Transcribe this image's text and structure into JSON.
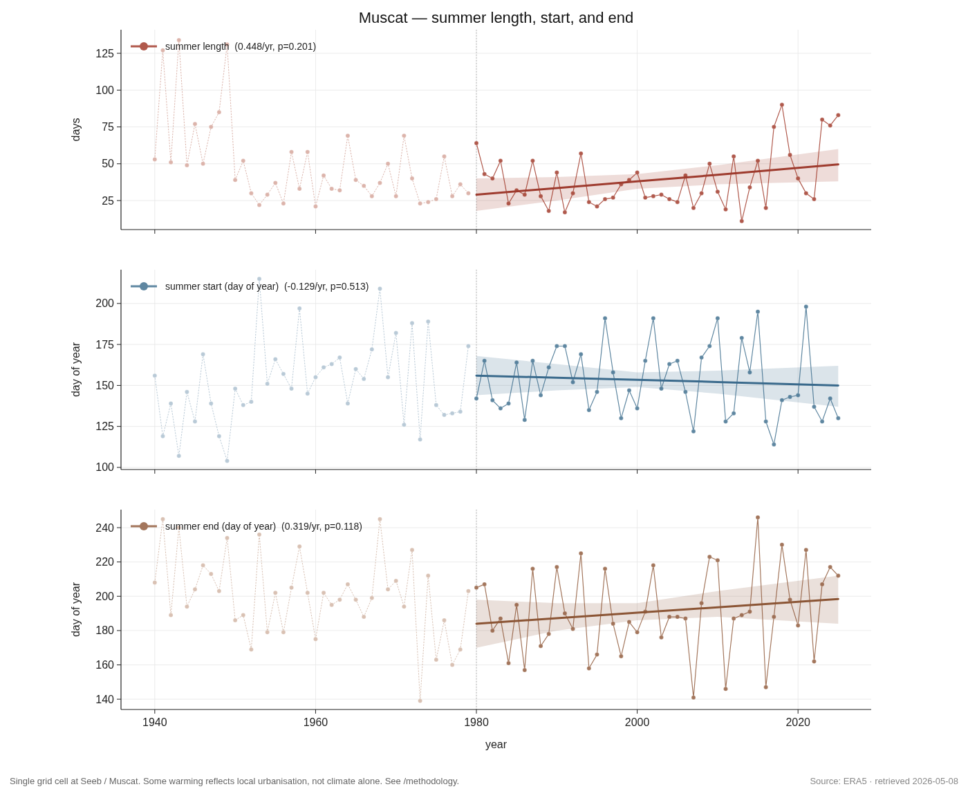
{
  "chart_data": [
    {
      "type": "line",
      "title": "Muscat — summer length, start, and end",
      "ylabel": "days",
      "xlim": [
        1935.8,
        2029.1
      ],
      "xticks": [
        1940,
        1960,
        1980,
        2000,
        2020
      ],
      "ylim": [
        5.3,
        141
      ],
      "yticks": [
        25,
        50,
        75,
        100,
        125
      ],
      "grid": true,
      "legend": "top left",
      "tick_labels": "y",
      "marker": "circle",
      "ref_lines": [
        {
          "axis": "x",
          "value": 1980,
          "color": "#999999",
          "line_style": "dotted"
        }
      ],
      "series": [
        {
          "x": [
            1940,
            1941,
            1942,
            1943,
            1944,
            1945,
            1946,
            1947,
            1948,
            1949,
            1950,
            1951,
            1952,
            1953,
            1954,
            1955,
            1956,
            1957,
            1958,
            1959,
            1960,
            1961,
            1962,
            1963,
            1964,
            1965,
            1966,
            1967,
            1968,
            1969,
            1970,
            1971,
            1972,
            1973,
            1974,
            1975,
            1976,
            1977,
            1978,
            1979
          ],
          "color": "#dcb4ab",
          "line_style": "dotted",
          "values": [
            53,
            127,
            51,
            134,
            49,
            77,
            50,
            75,
            85,
            131,
            39,
            52,
            30,
            22,
            29,
            37,
            23,
            58,
            33,
            58,
            21,
            42,
            33,
            32,
            69,
            39,
            35,
            28,
            37,
            50,
            28,
            69,
            40,
            23,
            24,
            26,
            55,
            28,
            36,
            30
          ]
        },
        {
          "name": "summer length  (0.448/yr, p=0.201)",
          "x": [
            1980,
            1981,
            1982,
            1983,
            1984,
            1985,
            1986,
            1987,
            1988,
            1989,
            1990,
            1991,
            1992,
            1993,
            1994,
            1995,
            1996,
            1997,
            1998,
            1999,
            2000,
            2001,
            2002,
            2003,
            2004,
            2005,
            2006,
            2007,
            2008,
            2009,
            2010,
            2011,
            2012,
            2013,
            2014,
            2015,
            2016,
            2017,
            2018,
            2019,
            2020,
            2021,
            2022,
            2023,
            2024,
            2025
          ],
          "color": "#b0594c",
          "line_style": "solid",
          "values": [
            64,
            43,
            40,
            52,
            23,
            32,
            29,
            52,
            28,
            18,
            44,
            17,
            30,
            57,
            24,
            21,
            26,
            27,
            36,
            39,
            44,
            27,
            28,
            29,
            26,
            24,
            42,
            20,
            30,
            50,
            31,
            19,
            55,
            11,
            34,
            52,
            20,
            75,
            90,
            56,
            40,
            30,
            26,
            80,
            76,
            83
          ]
        },
        {
          "x": [
            1980,
            1990,
            2000,
            2010,
            2025
          ],
          "color": "#9e3b2e",
          "marker": "none",
          "line_style": "solid",
          "values": [
            29,
            33.5,
            38,
            42.5,
            49.5
          ],
          "lower": [
            18,
            25,
            33,
            36,
            38
          ],
          "upper": [
            40,
            41,
            43,
            49,
            60
          ]
        }
      ]
    },
    {
      "type": "line",
      "ylabel": "day of year",
      "xlim": [
        1935.8,
        2029.1
      ],
      "xticks": [
        1940,
        1960,
        1980,
        2000,
        2020
      ],
      "ylim": [
        98.7,
        220.6
      ],
      "yticks": [
        100,
        125,
        150,
        175,
        200
      ],
      "grid": true,
      "legend": "top left",
      "tick_labels": "y",
      "marker": "circle",
      "ref_lines": [
        {
          "axis": "x",
          "value": 1980,
          "color": "#999999",
          "line_style": "dotted"
        }
      ],
      "series": [
        {
          "x": [
            1940,
            1941,
            1942,
            1943,
            1944,
            1945,
            1946,
            1947,
            1948,
            1949,
            1950,
            1951,
            1952,
            1953,
            1954,
            1955,
            1956,
            1957,
            1958,
            1959,
            1960,
            1961,
            1962,
            1963,
            1964,
            1965,
            1966,
            1967,
            1968,
            1969,
            1970,
            1971,
            1972,
            1973,
            1974,
            1975,
            1976,
            1977,
            1978,
            1979
          ],
          "color": "#b9cad7",
          "line_style": "dotted",
          "values": [
            156,
            119,
            139,
            107,
            146,
            128,
            169,
            139,
            119,
            104,
            148,
            138,
            140,
            215,
            151,
            166,
            157,
            148,
            197,
            145,
            155,
            161,
            163,
            167,
            139,
            160,
            154,
            172,
            209,
            155,
            182,
            126,
            188,
            117,
            189,
            138,
            132,
            133,
            134,
            174
          ]
        },
        {
          "name": "summer start (day of year)  (-0.129/yr, p=0.513)",
          "x": [
            1980,
            1981,
            1982,
            1983,
            1984,
            1985,
            1986,
            1987,
            1988,
            1989,
            1990,
            1991,
            1992,
            1993,
            1994,
            1995,
            1996,
            1997,
            1998,
            1999,
            2000,
            2001,
            2002,
            2003,
            2004,
            2005,
            2006,
            2007,
            2008,
            2009,
            2010,
            2011,
            2012,
            2013,
            2014,
            2015,
            2016,
            2017,
            2018,
            2019,
            2020,
            2021,
            2022,
            2023,
            2024,
            2025
          ],
          "color": "#5f87a1",
          "line_style": "solid",
          "values": [
            142,
            165,
            141,
            136,
            139,
            164,
            129,
            165,
            144,
            161,
            174,
            174,
            152,
            169,
            135,
            146,
            191,
            158,
            130,
            147,
            136,
            165,
            191,
            148,
            163,
            165,
            146,
            122,
            167,
            174,
            191,
            128,
            133,
            179,
            158,
            195,
            128,
            114,
            141,
            143,
            144,
            198,
            137,
            128,
            142,
            130
          ]
        },
        {
          "x": [
            1980,
            1990,
            2000,
            2010,
            2025
          ],
          "color": "#3a6a8c",
          "marker": "none",
          "line_style": "solid",
          "values": [
            156,
            154.7,
            153.4,
            152.1,
            150
          ],
          "lower": [
            144,
            147,
            149,
            145,
            137
          ],
          "upper": [
            168,
            163,
            158,
            159,
            162
          ]
        }
      ]
    },
    {
      "type": "line",
      "xlabel": "year",
      "ylabel": "day of year",
      "xlim": [
        1935.8,
        2029.1
      ],
      "xticks": [
        1940,
        1960,
        1980,
        2000,
        2020
      ],
      "ylim": [
        134,
        250.5
      ],
      "yticks": [
        140,
        160,
        180,
        200,
        220,
        240
      ],
      "grid": true,
      "legend": "top left",
      "marker": "circle",
      "ref_lines": [
        {
          "axis": "x",
          "value": 1980,
          "color": "#999999",
          "line_style": "dotted"
        }
      ],
      "annotations": [
        "Single grid cell at Seeb / Muscat. Some warming reflects local urbanisation, not climate alone. See /methodology.",
        "Source: ERA5 · retrieved 2026-05-08"
      ],
      "series": [
        {
          "x": [
            1940,
            1941,
            1942,
            1943,
            1944,
            1945,
            1946,
            1947,
            1948,
            1949,
            1950,
            1951,
            1952,
            1953,
            1954,
            1955,
            1956,
            1957,
            1958,
            1959,
            1960,
            1961,
            1962,
            1963,
            1964,
            1965,
            1966,
            1967,
            1968,
            1969,
            1970,
            1971,
            1972,
            1973,
            1974,
            1975,
            1976,
            1977,
            1978,
            1979
          ],
          "color": "#d9c1b3",
          "line_style": "dotted",
          "values": [
            208,
            245,
            189,
            240,
            194,
            204,
            218,
            213,
            203,
            234,
            186,
            189,
            169,
            236,
            179,
            202,
            179,
            205,
            229,
            202,
            175,
            202,
            195,
            198,
            207,
            198,
            188,
            199,
            245,
            204,
            209,
            194,
            227,
            139,
            212,
            163,
            186,
            160,
            169,
            203
          ]
        },
        {
          "name": "summer end (day of year)  (0.319/yr, p=0.118)",
          "x": [
            1980,
            1981,
            1982,
            1983,
            1984,
            1985,
            1986,
            1987,
            1988,
            1989,
            1990,
            1991,
            1992,
            1993,
            1994,
            1995,
            1996,
            1997,
            1998,
            1999,
            2000,
            2001,
            2002,
            2003,
            2004,
            2005,
            2006,
            2007,
            2008,
            2009,
            2010,
            2011,
            2012,
            2013,
            2014,
            2015,
            2016,
            2017,
            2018,
            2019,
            2020,
            2021,
            2022,
            2023,
            2024,
            2025
          ],
          "color": "#a3765c",
          "line_style": "solid",
          "values": [
            205,
            207,
            180,
            187,
            161,
            195,
            157,
            216,
            171,
            178,
            217,
            190,
            181,
            225,
            158,
            166,
            216,
            184,
            165,
            185,
            179,
            191,
            218,
            176,
            188,
            188,
            187,
            141,
            196,
            223,
            221,
            146,
            187,
            189,
            191,
            246,
            147,
            188,
            230,
            198,
            183,
            227,
            162,
            207,
            217,
            212
          ]
        },
        {
          "x": [
            1980,
            1990,
            2000,
            2010,
            2025
          ],
          "color": "#8b5535",
          "marker": "none",
          "line_style": "solid",
          "values": [
            184,
            187.2,
            190.4,
            193.6,
            198.4
          ],
          "lower": [
            170,
            180,
            186,
            188,
            184
          ],
          "upper": [
            198,
            196,
            196,
            203,
            212
          ]
        }
      ]
    }
  ]
}
